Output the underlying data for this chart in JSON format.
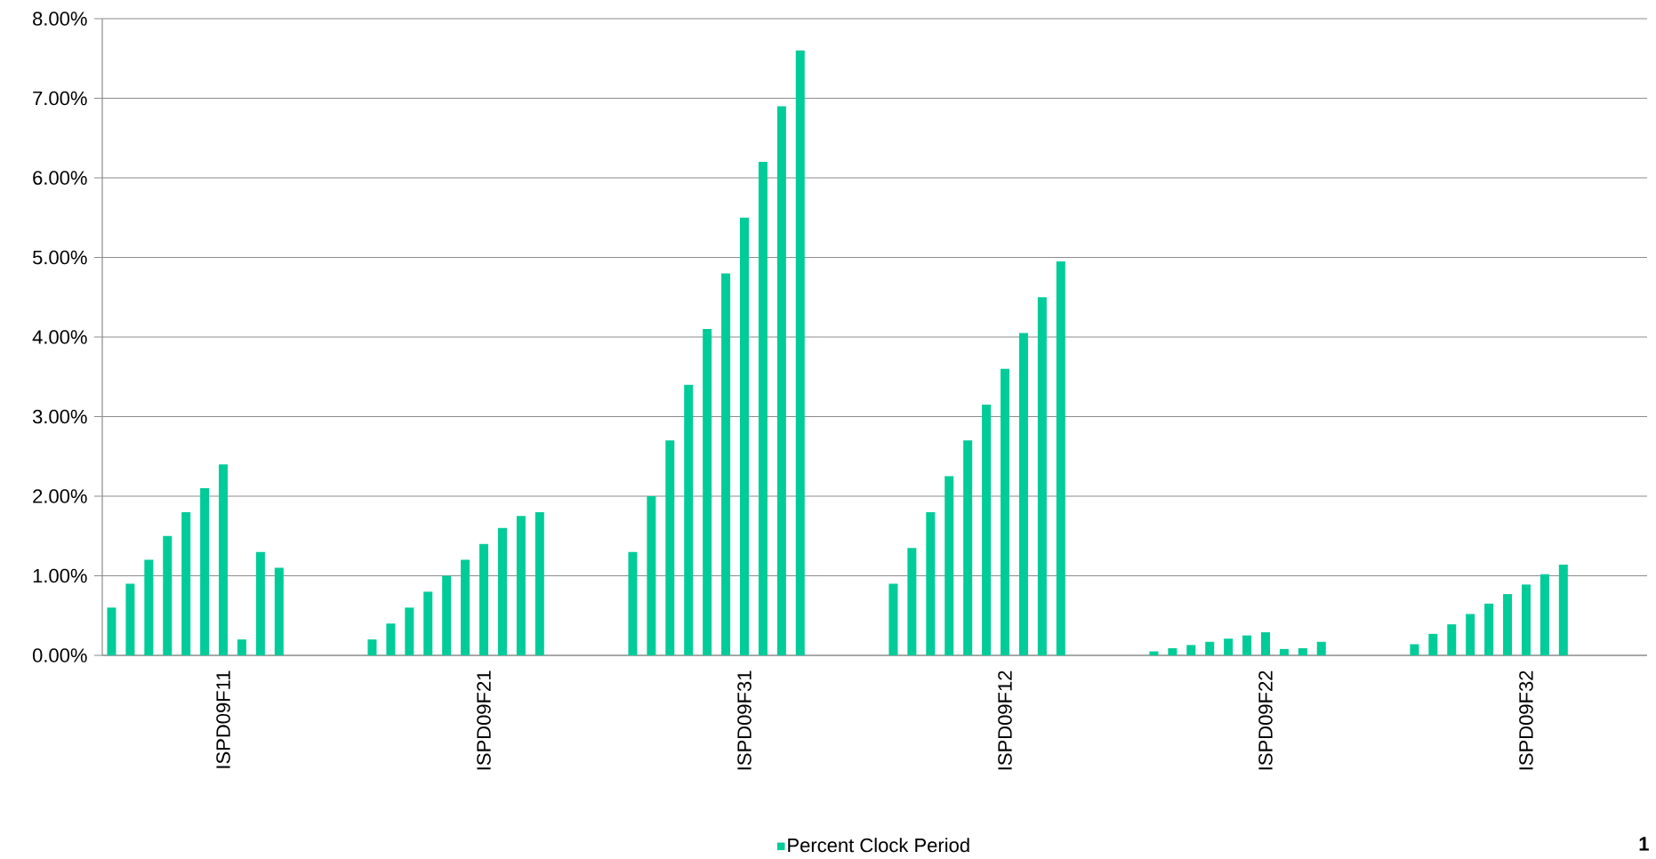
{
  "chart_data": {
    "type": "bar",
    "categories": [
      null,
      null,
      null,
      null,
      null,
      null,
      "ISPD09F11",
      null,
      null,
      null,
      null,
      null,
      null,
      null,
      null,
      null,
      null,
      null,
      null,
      null,
      "ISPD09F21",
      null,
      null,
      null,
      null,
      null,
      null,
      null,
      null,
      null,
      null,
      null,
      null,
      null,
      "ISPD09F31",
      null,
      null,
      null,
      null,
      null,
      null,
      null,
      null,
      null,
      null,
      null,
      null,
      null,
      "ISPD09F12",
      null,
      null,
      null,
      null,
      null,
      null,
      null,
      null,
      null,
      null,
      null,
      null,
      null,
      "ISPD09F22",
      null,
      null,
      null,
      null,
      null,
      null,
      null,
      null,
      null,
      null,
      null,
      null,
      null,
      "ISPD09F32",
      null,
      null,
      null,
      null,
      null,
      null
    ],
    "series": [
      {
        "name": "Percent Clock Period",
        "color": "#00cc99",
        "values": [
          0.6,
          0.9,
          1.2,
          1.5,
          1.8,
          2.1,
          2.4,
          0.2,
          1.3,
          1.1,
          null,
          null,
          null,
          null,
          0.2,
          0.4,
          0.6,
          0.8,
          1.0,
          1.2,
          1.4,
          1.6,
          1.75,
          1.8,
          null,
          null,
          null,
          null,
          1.3,
          2.0,
          2.7,
          3.4,
          4.1,
          4.8,
          5.5,
          6.2,
          6.9,
          7.6,
          null,
          null,
          null,
          null,
          0.9,
          1.35,
          1.8,
          2.25,
          2.7,
          3.15,
          3.6,
          4.05,
          4.5,
          4.95,
          null,
          null,
          null,
          null,
          0.05,
          0.09,
          0.13,
          0.17,
          0.21,
          0.25,
          0.29,
          0.08,
          0.09,
          0.17,
          null,
          null,
          null,
          null,
          0.14,
          0.27,
          0.39,
          0.52,
          0.65,
          0.77,
          0.89,
          1.02,
          1.14,
          null,
          null,
          null,
          null
        ]
      }
    ],
    "ylim": [
      0,
      8
    ],
    "yticks": [
      {
        "value": 0,
        "label": "0.00%"
      },
      {
        "value": 1,
        "label": "1.00%"
      },
      {
        "value": 2,
        "label": "2.00%"
      },
      {
        "value": 3,
        "label": "3.00%"
      },
      {
        "value": 4,
        "label": "4.00%"
      },
      {
        "value": 5,
        "label": "5.00%"
      },
      {
        "value": 6,
        "label": "6.00%"
      },
      {
        "value": 7,
        "label": "7.00%"
      },
      {
        "value": 8,
        "label": "8.00%"
      }
    ],
    "grid": "y",
    "legend": "bottom",
    "annotations": [
      "1"
    ]
  }
}
